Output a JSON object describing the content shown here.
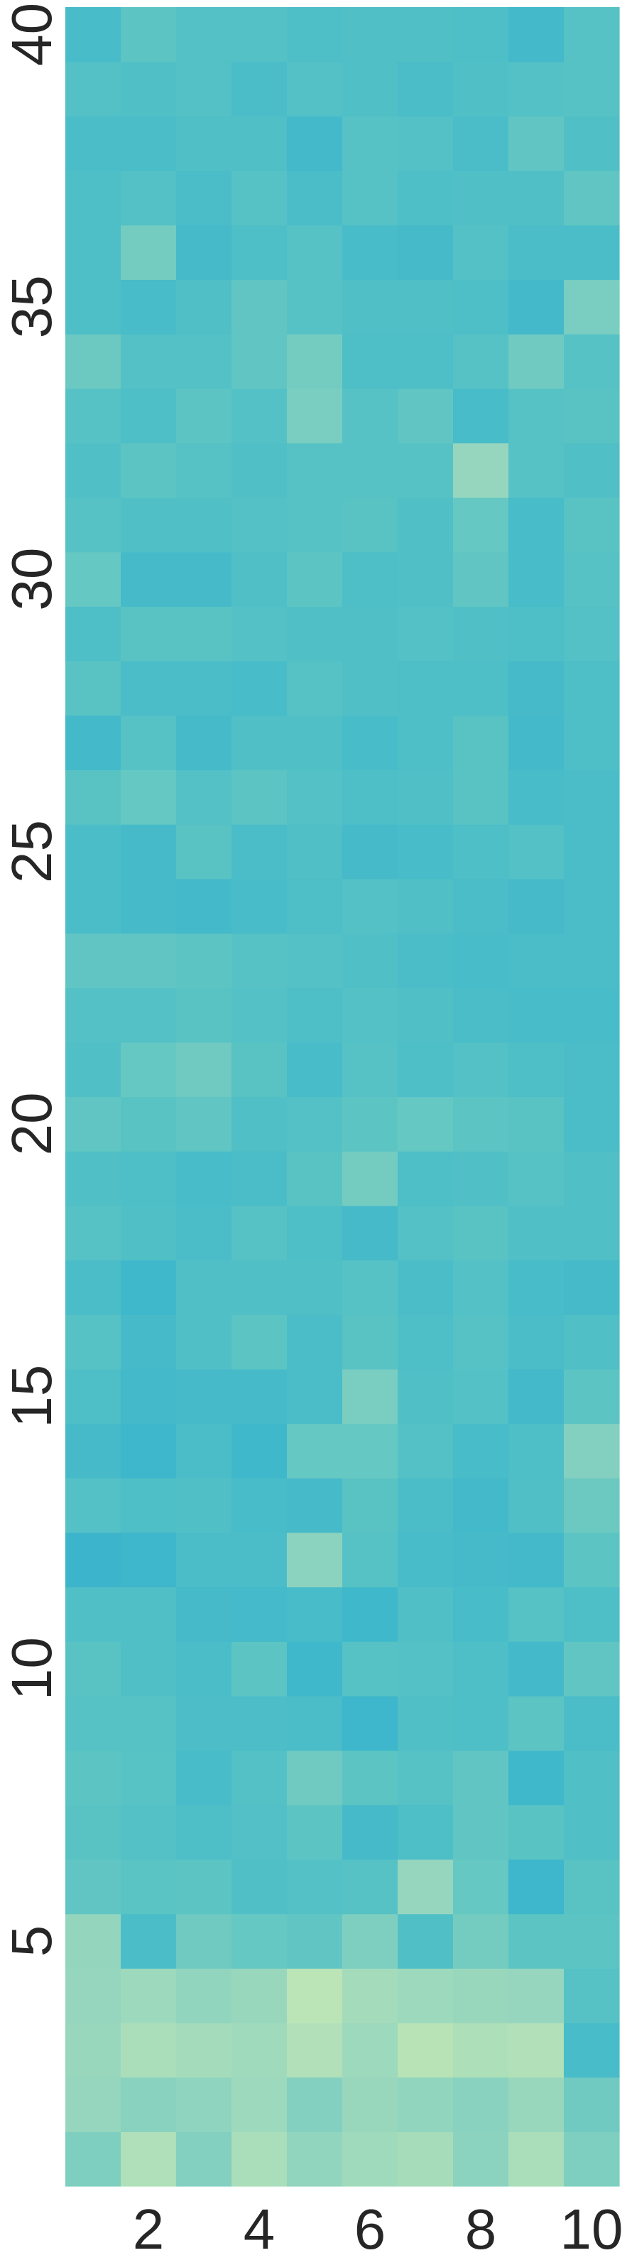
{
  "chart_data": {
    "type": "heatmap",
    "title": "",
    "xlabel": "",
    "ylabel": "",
    "x_ticks": [
      "2",
      "4",
      "6",
      "8",
      "10"
    ],
    "y_ticks": [
      "5",
      "10",
      "15",
      "20",
      "25",
      "30",
      "35",
      "40"
    ],
    "x_range": [
      1,
      10
    ],
    "y_range": [
      1,
      40
    ],
    "colormap": "YlGnBu-light",
    "colorbar": false,
    "value_range": [
      0,
      1
    ],
    "rows": [
      [
        0.4,
        0.15,
        0.38,
        0.18,
        0.32,
        0.24,
        0.2,
        0.34,
        0.18,
        0.4
      ],
      [
        0.3,
        0.36,
        0.33,
        0.26,
        0.38,
        0.28,
        0.32,
        0.36,
        0.28,
        0.46
      ],
      [
        0.28,
        0.18,
        0.22,
        0.24,
        0.14,
        0.26,
        0.1,
        0.16,
        0.14,
        0.68
      ],
      [
        0.3,
        0.26,
        0.32,
        0.28,
        0.08,
        0.22,
        0.26,
        0.28,
        0.3,
        0.58
      ],
      [
        0.31,
        0.66,
        0.46,
        0.5,
        0.52,
        0.4,
        0.62,
        0.44,
        0.54,
        0.54
      ],
      [
        0.52,
        0.55,
        0.54,
        0.62,
        0.6,
        0.58,
        0.3,
        0.5,
        0.76,
        0.56
      ],
      [
        0.56,
        0.6,
        0.64,
        0.61,
        0.54,
        0.7,
        0.64,
        0.52,
        0.56,
        0.62
      ],
      [
        0.54,
        0.57,
        0.68,
        0.6,
        0.46,
        0.54,
        0.58,
        0.52,
        0.74,
        0.62
      ],
      [
        0.58,
        0.58,
        0.65,
        0.65,
        0.66,
        0.76,
        0.62,
        0.64,
        0.54,
        0.66
      ],
      [
        0.56,
        0.62,
        0.66,
        0.54,
        0.74,
        0.58,
        0.6,
        0.64,
        0.72,
        0.52
      ],
      [
        0.62,
        0.62,
        0.7,
        0.71,
        0.68,
        0.74,
        0.62,
        0.68,
        0.58,
        0.64
      ],
      [
        0.78,
        0.76,
        0.66,
        0.66,
        0.34,
        0.58,
        0.68,
        0.7,
        0.72,
        0.54
      ],
      [
        0.6,
        0.64,
        0.62,
        0.68,
        0.7,
        0.56,
        0.66,
        0.72,
        0.62,
        0.48
      ],
      [
        0.7,
        0.76,
        0.66,
        0.74,
        0.5,
        0.5,
        0.6,
        0.68,
        0.64,
        0.38
      ],
      [
        0.64,
        0.72,
        0.7,
        0.7,
        0.66,
        0.42,
        0.62,
        0.6,
        0.72,
        0.54
      ],
      [
        0.58,
        0.7,
        0.62,
        0.54,
        0.66,
        0.56,
        0.64,
        0.58,
        0.66,
        0.62
      ],
      [
        0.66,
        0.74,
        0.62,
        0.62,
        0.62,
        0.58,
        0.66,
        0.6,
        0.68,
        0.7
      ],
      [
        0.58,
        0.62,
        0.66,
        0.58,
        0.64,
        0.7,
        0.6,
        0.56,
        0.62,
        0.62
      ],
      [
        0.62,
        0.64,
        0.68,
        0.66,
        0.56,
        0.44,
        0.64,
        0.62,
        0.58,
        0.62
      ],
      [
        0.52,
        0.56,
        0.52,
        0.62,
        0.6,
        0.54,
        0.5,
        0.54,
        0.56,
        0.66
      ],
      [
        0.62,
        0.5,
        0.46,
        0.56,
        0.68,
        0.58,
        0.64,
        0.6,
        0.64,
        0.66
      ],
      [
        0.6,
        0.6,
        0.56,
        0.6,
        0.64,
        0.6,
        0.62,
        0.66,
        0.68,
        0.68
      ],
      [
        0.52,
        0.52,
        0.54,
        0.58,
        0.6,
        0.62,
        0.66,
        0.68,
        0.66,
        0.66
      ],
      [
        0.66,
        0.7,
        0.72,
        0.68,
        0.64,
        0.6,
        0.62,
        0.66,
        0.7,
        0.66
      ],
      [
        0.66,
        0.7,
        0.56,
        0.66,
        0.62,
        0.7,
        0.68,
        0.64,
        0.6,
        0.66
      ],
      [
        0.56,
        0.5,
        0.6,
        0.54,
        0.6,
        0.64,
        0.62,
        0.56,
        0.68,
        0.66
      ],
      [
        0.72,
        0.58,
        0.7,
        0.62,
        0.62,
        0.68,
        0.64,
        0.56,
        0.72,
        0.64
      ],
      [
        0.56,
        0.66,
        0.66,
        0.68,
        0.58,
        0.62,
        0.64,
        0.64,
        0.7,
        0.64
      ],
      [
        0.64,
        0.56,
        0.56,
        0.6,
        0.62,
        0.62,
        0.6,
        0.62,
        0.64,
        0.6
      ],
      [
        0.5,
        0.7,
        0.7,
        0.62,
        0.54,
        0.64,
        0.62,
        0.52,
        0.68,
        0.58
      ],
      [
        0.58,
        0.62,
        0.62,
        0.6,
        0.58,
        0.56,
        0.62,
        0.5,
        0.68,
        0.56
      ],
      [
        0.62,
        0.54,
        0.58,
        0.62,
        0.58,
        0.58,
        0.58,
        0.3,
        0.58,
        0.62
      ],
      [
        0.58,
        0.64,
        0.54,
        0.6,
        0.42,
        0.58,
        0.52,
        0.68,
        0.58,
        0.56
      ],
      [
        0.48,
        0.6,
        0.6,
        0.52,
        0.44,
        0.64,
        0.64,
        0.58,
        0.46,
        0.58
      ],
      [
        0.64,
        0.68,
        0.62,
        0.52,
        0.58,
        0.62,
        0.62,
        0.64,
        0.72,
        0.42
      ],
      [
        0.64,
        0.44,
        0.7,
        0.64,
        0.58,
        0.68,
        0.7,
        0.6,
        0.66,
        0.66
      ],
      [
        0.64,
        0.6,
        0.66,
        0.58,
        0.66,
        0.58,
        0.64,
        0.62,
        0.62,
        0.52
      ],
      [
        0.66,
        0.66,
        0.62,
        0.62,
        0.72,
        0.58,
        0.6,
        0.66,
        0.52,
        0.62
      ],
      [
        0.6,
        0.62,
        0.6,
        0.66,
        0.6,
        0.62,
        0.66,
        0.62,
        0.6,
        0.58
      ],
      [
        0.68,
        0.54,
        0.6,
        0.6,
        0.64,
        0.62,
        0.62,
        0.64,
        0.72,
        0.58
      ]
    ]
  }
}
